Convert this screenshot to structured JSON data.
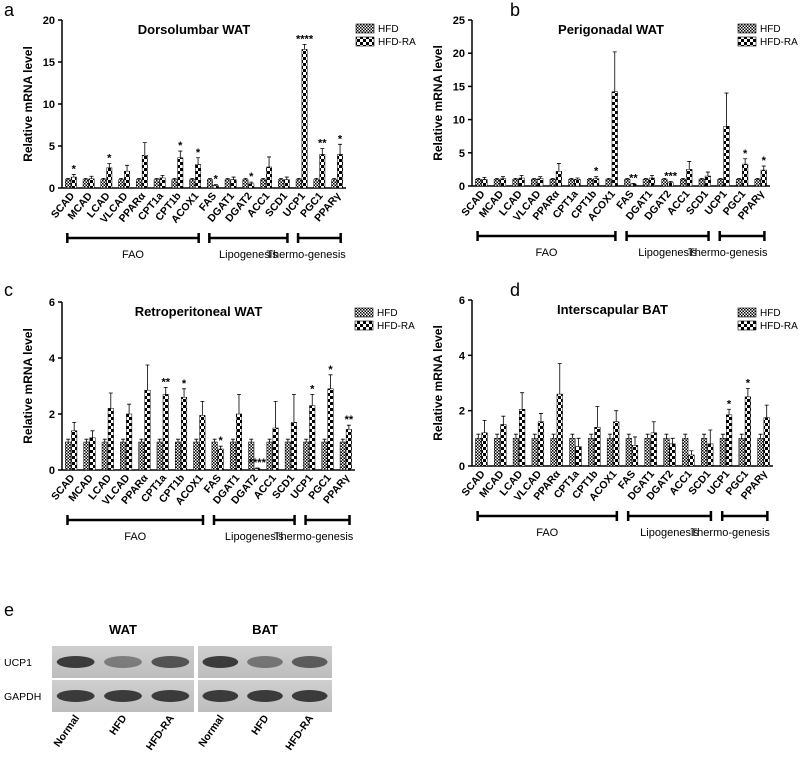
{
  "chart_data": [
    {
      "type": "bar",
      "panel": "a",
      "title": "Dorsolumbar WAT",
      "y_label": "Relative mRNA level",
      "categories": [
        "SCAD",
        "MCAD",
        "LCAD",
        "VLCAD",
        "PPARα",
        "CPT1a",
        "CPT1b",
        "ACOX1",
        "FAS",
        "DGAT1",
        "DGAT2",
        "ACC1",
        "SCD1",
        "UCP1",
        "PGC1",
        "PPARγ"
      ],
      "series": [
        {
          "name": "HFD",
          "color": "#000000",
          "values": [
            1,
            1,
            1,
            1,
            1,
            1,
            1,
            1,
            1,
            1,
            1,
            1,
            1,
            1,
            1,
            1
          ],
          "errors": [
            0.15,
            0.15,
            0.15,
            0.15,
            0.15,
            0.15,
            0.15,
            0.15,
            0.15,
            0.15,
            0.15,
            0.15,
            0.15,
            0.15,
            0.15,
            0.15
          ],
          "annotations": [
            null,
            null,
            null,
            null,
            null,
            null,
            null,
            null,
            null,
            null,
            null,
            null,
            null,
            null,
            null,
            null
          ]
        },
        {
          "name": "HFD-RA",
          "color": "#000000",
          "values": [
            1.3,
            1.1,
            2.4,
            2.0,
            3.9,
            1.2,
            3.6,
            2.8,
            0.3,
            1.0,
            0.5,
            2.5,
            1.0,
            16.5,
            4.0,
            4.0
          ],
          "errors": [
            0.3,
            0.3,
            0.5,
            0.7,
            1.5,
            0.3,
            0.8,
            0.8,
            0.1,
            0.3,
            0.2,
            1.2,
            0.3,
            0.6,
            0.7,
            1.2
          ],
          "annotations": [
            "*",
            null,
            "*",
            null,
            null,
            null,
            "*",
            "*",
            "*",
            null,
            "*",
            null,
            null,
            "****",
            "**",
            "*"
          ]
        }
      ],
      "groups": [
        {
          "label": "FAO",
          "count": 8
        },
        {
          "label": "Lipogenesis",
          "count": 5
        },
        {
          "label": "Thermo-genesis",
          "count": 3
        }
      ],
      "ylim": [
        0,
        20
      ],
      "yticks": [
        0,
        5,
        10,
        15,
        20
      ],
      "legend": "top-right"
    },
    {
      "type": "bar",
      "panel": "b",
      "title": "Perigonadal WAT",
      "y_label": "Relative mRNA level",
      "categories": [
        "SCAD",
        "MCAD",
        "LCAD",
        "VLCAD",
        "PPARα",
        "CPT1a",
        "CPT1b",
        "ACOX1",
        "FAS",
        "DGAT1",
        "DGAT2",
        "ACC1",
        "SCD1",
        "UCP1",
        "PGC1",
        "PPARγ"
      ],
      "series": [
        {
          "name": "HFD",
          "color": "#000000",
          "values": [
            1,
            1,
            1,
            1,
            1,
            1,
            1,
            1,
            1,
            1,
            1,
            1,
            1,
            1,
            1,
            1
          ],
          "errors": [
            0.15,
            0.15,
            0.15,
            0.15,
            0.15,
            0.15,
            0.15,
            0.15,
            0.15,
            0.15,
            0.15,
            0.15,
            0.15,
            0.15,
            0.15,
            0.15
          ],
          "annotations": [
            null,
            null,
            null,
            null,
            null,
            null,
            null,
            null,
            null,
            null,
            null,
            null,
            null,
            null,
            null,
            null
          ]
        },
        {
          "name": "HFD-RA",
          "color": "#000000",
          "values": [
            1.0,
            1.1,
            1.2,
            1.1,
            2.2,
            1.0,
            1.1,
            14.2,
            0.3,
            1.2,
            0.5,
            2.5,
            1.5,
            9.0,
            3.3,
            2.4
          ],
          "errors": [
            0.3,
            0.3,
            0.4,
            0.3,
            1.2,
            0.2,
            0.3,
            6,
            0.1,
            0.4,
            0.2,
            1.2,
            0.6,
            5,
            0.8,
            0.6
          ],
          "annotations": [
            null,
            null,
            null,
            null,
            null,
            null,
            "*",
            null,
            "**",
            null,
            "***",
            null,
            null,
            null,
            "*",
            "*"
          ]
        }
      ],
      "groups": [
        {
          "label": "FAO",
          "count": 8
        },
        {
          "label": "Lipogenesis",
          "count": 5
        },
        {
          "label": "Thermo-genesis",
          "count": 3
        }
      ],
      "ylim": [
        0,
        25
      ],
      "yticks": [
        0,
        5,
        10,
        15,
        20,
        25
      ],
      "legend": "top-right"
    },
    {
      "type": "bar",
      "panel": "c",
      "title": "Retroperitoneal WAT",
      "y_label": "Relative mRNA level",
      "categories": [
        "SCAD",
        "MCAD",
        "LCAD",
        "VLCAD",
        "PPARα",
        "CPT1a",
        "CPT1b",
        "ACOX1",
        "FAS",
        "DGAT1",
        "DGAT2",
        "ACC1",
        "SCD1",
        "UCP1",
        "PGC1",
        "PPARγ"
      ],
      "series": [
        {
          "name": "HFD",
          "color": "#000000",
          "values": [
            1,
            1,
            1,
            1,
            1,
            1,
            1,
            1,
            1,
            1,
            1,
            1,
            1,
            1,
            1,
            1
          ],
          "errors": [
            0.1,
            0.1,
            0.1,
            0.1,
            0.1,
            0.1,
            0.1,
            0.1,
            0.1,
            0.1,
            0.1,
            0.1,
            0.1,
            0.1,
            0.1,
            0.1
          ],
          "annotations": [
            null,
            null,
            null,
            null,
            null,
            null,
            null,
            null,
            null,
            null,
            null,
            null,
            null,
            null,
            null,
            null
          ]
        },
        {
          "name": "HFD-RA",
          "color": "#000000",
          "values": [
            1.4,
            1.15,
            2.2,
            2.0,
            2.85,
            2.7,
            2.6,
            1.95,
            0.75,
            2.0,
            0.05,
            1.5,
            1.7,
            2.3,
            2.9,
            1.45
          ],
          "errors": [
            0.3,
            0.25,
            0.55,
            0.35,
            0.9,
            0.25,
            0.3,
            0.5,
            0.1,
            0.7,
            0.02,
            0.95,
            1.0,
            0.4,
            0.5,
            0.15
          ],
          "annotations": [
            null,
            null,
            null,
            null,
            null,
            "**",
            "*",
            null,
            "*",
            null,
            "****",
            null,
            null,
            "*",
            "*",
            "**"
          ]
        }
      ],
      "groups": [
        {
          "label": "FAO",
          "count": 8
        },
        {
          "label": "Lipogenesis",
          "count": 5
        },
        {
          "label": "Thermo-genesis",
          "count": 3
        }
      ],
      "ylim": [
        0,
        6
      ],
      "yticks": [
        0,
        2,
        4,
        6
      ],
      "legend": "top-right"
    },
    {
      "type": "bar",
      "panel": "d",
      "title": "Interscapular BAT",
      "y_label": "Relative mRNA level",
      "categories": [
        "SCAD",
        "MCAD",
        "LCAD",
        "VLCAD",
        "PPARα",
        "CPT1a",
        "CPT1b",
        "ACOX1",
        "FAS",
        "DGAT1",
        "DGAT2",
        "ACC1",
        "SCD1",
        "UCP1",
        "PGC1",
        "PPARγ"
      ],
      "series": [
        {
          "name": "HFD",
          "color": "#000000",
          "values": [
            1,
            1,
            1,
            1,
            1,
            1,
            1,
            1,
            1,
            1,
            1,
            1,
            1,
            1,
            1,
            1
          ],
          "errors": [
            0.15,
            0.15,
            0.15,
            0.15,
            0.15,
            0.15,
            0.15,
            0.15,
            0.15,
            0.15,
            0.15,
            0.15,
            0.15,
            0.15,
            0.15,
            0.15
          ],
          "annotations": [
            null,
            null,
            null,
            null,
            null,
            null,
            null,
            null,
            null,
            null,
            null,
            null,
            null,
            null,
            null,
            null
          ]
        },
        {
          "name": "HFD-RA",
          "color": "#000000",
          "values": [
            1.2,
            1.5,
            2.05,
            1.6,
            2.6,
            0.7,
            1.4,
            1.6,
            0.75,
            1.2,
            0.8,
            0.4,
            0.8,
            1.85,
            2.5,
            1.75
          ],
          "errors": [
            0.45,
            0.3,
            0.6,
            0.3,
            1.1,
            0.3,
            0.75,
            0.4,
            0.3,
            0.4,
            0.2,
            0.15,
            0.5,
            0.2,
            0.3,
            0.45
          ],
          "annotations": [
            null,
            null,
            null,
            null,
            null,
            null,
            null,
            null,
            null,
            null,
            null,
            null,
            null,
            "*",
            "*",
            null
          ]
        }
      ],
      "groups": [
        {
          "label": "FAO",
          "count": 8
        },
        {
          "label": "Lipogenesis",
          "count": 5
        },
        {
          "label": "Thermo-genesis",
          "count": 3
        }
      ],
      "ylim": [
        0,
        6
      ],
      "yticks": [
        0,
        2,
        4,
        6
      ],
      "legend": "top-right"
    }
  ],
  "blot": {
    "panel": "e",
    "tissues": [
      "WAT",
      "BAT"
    ],
    "rows": [
      "UCP1",
      "GAPDH"
    ],
    "lanes": [
      "Normal",
      "HFD",
      "HFD-RA"
    ]
  }
}
